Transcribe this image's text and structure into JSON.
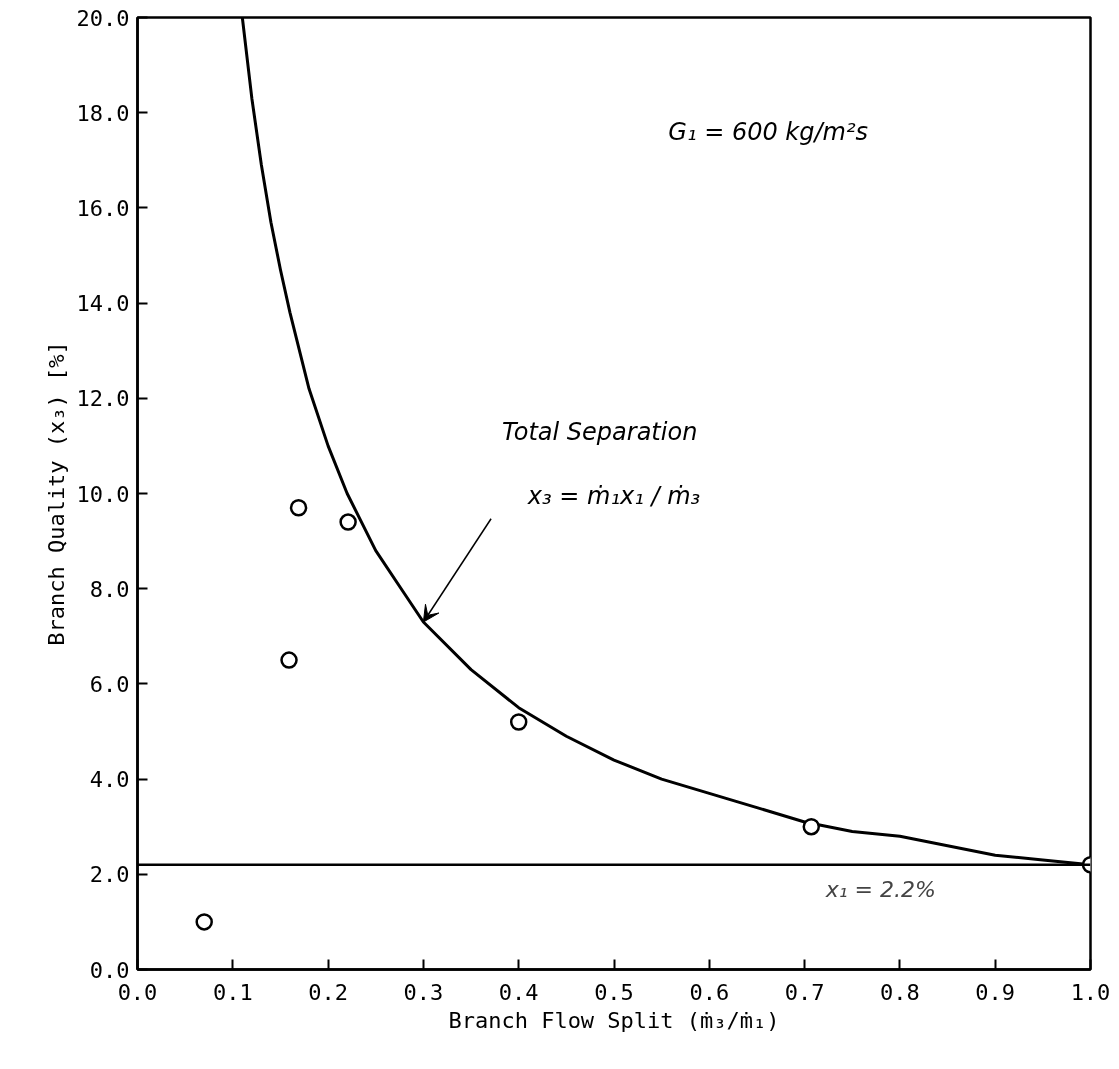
{
  "chart_data": {
    "type": "scatter",
    "xlabel": "Branch Flow Split (ṁ₃/ṁ₁)",
    "ylabel": "Branch Quality (x₃) [%]",
    "xlim": [
      0.0,
      1.0
    ],
    "ylim": [
      0.0,
      20.0
    ],
    "xticks": [
      {
        "value": 0.0,
        "label": "0.0"
      },
      0.1,
      0.2,
      0.3,
      0.4,
      0.5,
      0.6,
      0.7,
      0.8,
      0.9,
      {
        "value": 1.0,
        "label": "1.0"
      }
    ],
    "yticks": [
      {
        "value": 0,
        "label": "0.0"
      },
      {
        "value": 2,
        "label": "2.0"
      },
      {
        "value": 4,
        "label": "4.0"
      },
      {
        "value": 6,
        "label": "6.0"
      },
      {
        "value": 8,
        "label": "8.0"
      },
      {
        "value": 10,
        "label": "10.0"
      },
      {
        "value": 12,
        "label": "12.0"
      },
      {
        "value": 14,
        "label": "14.0"
      },
      {
        "value": 16,
        "label": "16.0"
      },
      {
        "value": 18,
        "label": "18.0"
      },
      {
        "value": 20,
        "label": "20.0"
      }
    ],
    "series": [
      {
        "marker": "circle",
        "color": "#000000",
        "x": [
          0.07,
          0.159,
          0.169,
          0.221,
          0.4,
          0.707,
          1.0
        ],
        "values": [
          1.0,
          6.5,
          9.7,
          9.4,
          5.2,
          3.0,
          2.2
        ]
      },
      {
        "type": "line",
        "line_style": "solid",
        "color": "#000000",
        "x": [
          0.11,
          0.12,
          0.13,
          0.14,
          0.15,
          0.16,
          0.18,
          0.2,
          0.22,
          0.25,
          0.28,
          0.3,
          0.35,
          0.4,
          0.45,
          0.5,
          0.55,
          0.6,
          0.65,
          0.7,
          0.75,
          0.8,
          0.85,
          0.9,
          0.95,
          1.0
        ],
        "values": [
          20.0,
          18.3,
          16.9,
          15.7,
          14.7,
          13.8,
          12.2,
          11.0,
          10.0,
          8.8,
          7.9,
          7.3,
          6.3,
          5.5,
          4.9,
          4.4,
          4.0,
          3.7,
          3.4,
          3.1,
          2.9,
          2.8,
          2.6,
          2.4,
          2.3,
          2.2
        ]
      }
    ],
    "ref_lines": [
      {
        "axis": "y",
        "value": 2.2,
        "label": "x₁ = 2.2%",
        "color": "#000000",
        "line_style": "solid"
      }
    ],
    "annotations": [
      "Total Separation",
      "x₃ = ṁ₁x₁ / ṁ₃",
      "G₁ = 600 kg/m²s"
    ]
  }
}
